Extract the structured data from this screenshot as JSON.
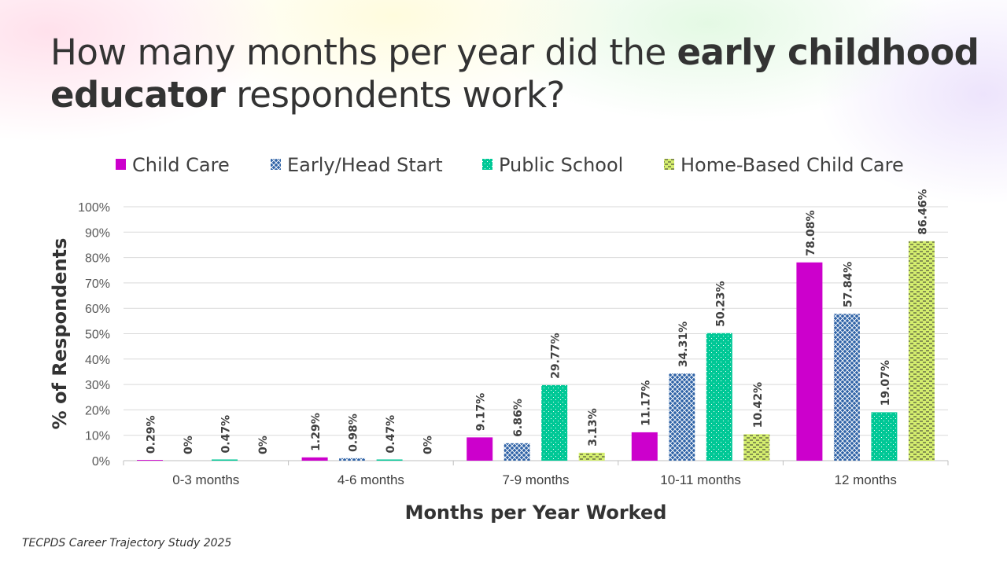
{
  "title": {
    "part1": "How many months per year did the ",
    "bold1": "early childhood educator",
    "part2": " respondents work?"
  },
  "source": "TECPDS Career Trajectory Study 2025",
  "chart_data": {
    "type": "bar",
    "title": "How many months per year did the early childhood educator respondents work?",
    "xlabel": "Months per Year Worked",
    "ylabel": "% of Respondents",
    "ylim": [
      0,
      100
    ],
    "yticks": [
      "0%",
      "10%",
      "20%",
      "30%",
      "40%",
      "50%",
      "60%",
      "70%",
      "80%",
      "90%",
      "100%"
    ],
    "grid": true,
    "legend_position": "top",
    "categories": [
      "0-3 months",
      "4-6 months",
      "7-9 months",
      "10-11 months",
      "12 months"
    ],
    "series": [
      {
        "name": "Child Care",
        "color": "#CC00CC",
        "pattern": "solid",
        "values": [
          0.29,
          1.29,
          9.17,
          11.17,
          78.08
        ],
        "labels": [
          "0.29%",
          "1.29%",
          "9.17%",
          "11.17%",
          "78.08%"
        ]
      },
      {
        "name": "Early/Head Start",
        "color": "#2E62A6",
        "pattern": "crosshatch",
        "values": [
          0,
          0.98,
          6.86,
          34.31,
          57.84
        ],
        "labels": [
          "0%",
          "0.98%",
          "6.86%",
          "34.31%",
          "57.84%"
        ]
      },
      {
        "name": "Public School",
        "color": "#00C896",
        "pattern": "dots",
        "values": [
          0.47,
          0.47,
          29.77,
          50.23,
          19.07
        ],
        "labels": [
          "0.47%",
          "0.47%",
          "29.77%",
          "50.23%",
          "19.07%"
        ]
      },
      {
        "name": "Home-Based Child Care",
        "color": "#D4EE6E",
        "pattern": "dashes",
        "values": [
          0,
          0,
          3.13,
          10.42,
          86.46
        ],
        "labels": [
          "0%",
          "0%",
          "3.13%",
          "10.42%",
          "86.46%"
        ]
      }
    ]
  }
}
